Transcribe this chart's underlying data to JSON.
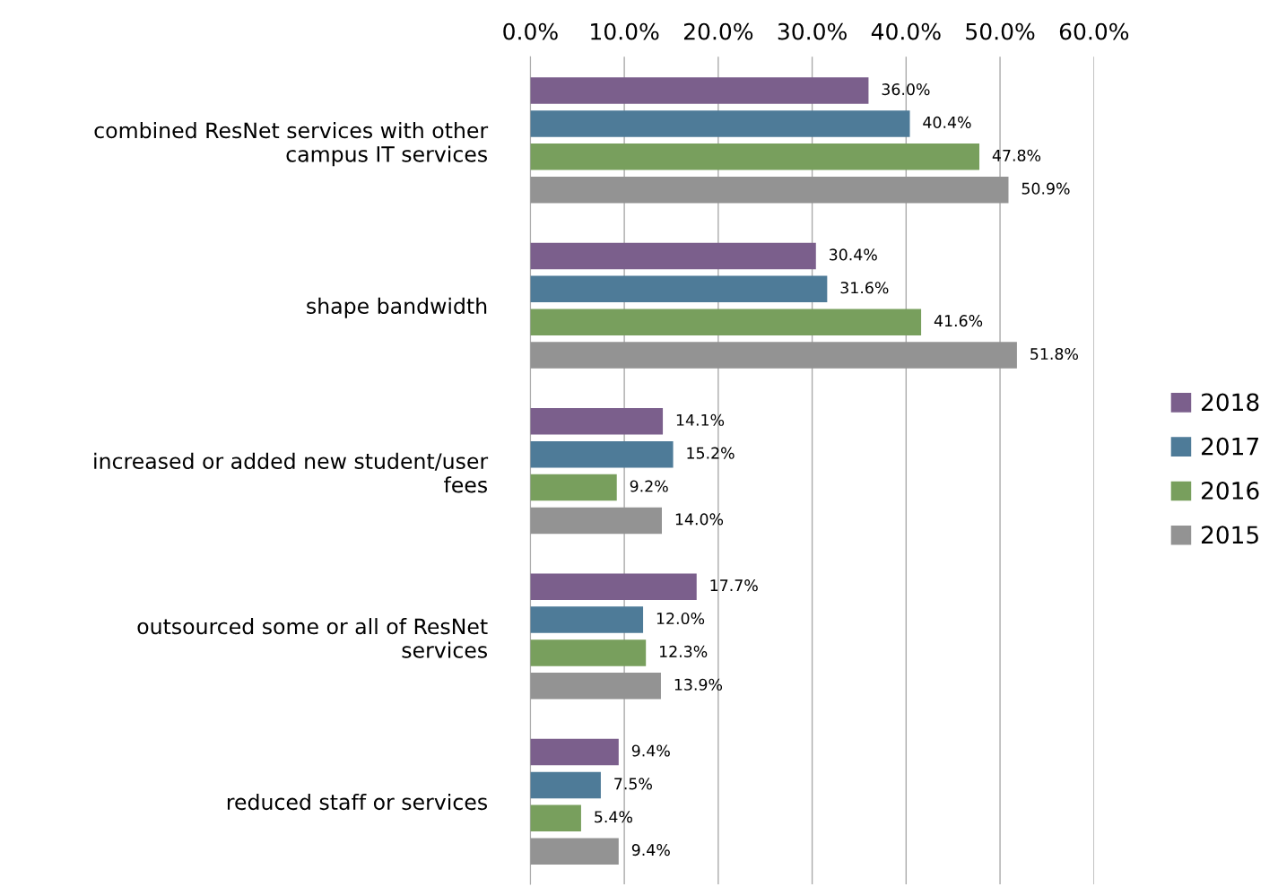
{
  "chart_data": {
    "type": "bar",
    "orientation": "horizontal",
    "categories": [
      "combined ResNet services with other\ncampus IT services",
      "shape bandwidth",
      "increased or added new student/user\nfees",
      "outsourced some or all of ResNet\nservices",
      "reduced staff or services"
    ],
    "series": [
      {
        "name": "2018",
        "color": "#7b5f8c",
        "values": [
          36.0,
          30.4,
          14.1,
          17.7,
          9.4
        ],
        "value_labels": [
          "36.0%",
          "30.4%",
          "14.1%",
          "17.7%",
          "9.4%"
        ]
      },
      {
        "name": "2017",
        "color": "#4e7b98",
        "values": [
          40.4,
          31.6,
          15.2,
          12.0,
          7.5
        ],
        "value_labels": [
          "40.4%",
          "31.6%",
          "15.2%",
          "12.0%",
          "7.5%"
        ]
      },
      {
        "name": "2016",
        "color": "#789f5d",
        "values": [
          47.8,
          41.6,
          9.2,
          12.3,
          5.4
        ],
        "value_labels": [
          "47.8%",
          "41.6%",
          "9.2%",
          "12.3%",
          "5.4%"
        ]
      },
      {
        "name": "2015",
        "color": "#939393",
        "values": [
          50.9,
          51.8,
          14.0,
          13.9,
          9.4
        ],
        "value_labels": [
          "50.9%",
          "51.8%",
          "14.0%",
          "13.9%",
          "9.4%"
        ]
      }
    ],
    "xlim": [
      0,
      60
    ],
    "xticks": [
      {
        "value": 0,
        "label": "0.0%"
      },
      {
        "value": 10,
        "label": "10.0%"
      },
      {
        "value": 20,
        "label": "20.0%"
      },
      {
        "value": 30,
        "label": "30.0%"
      },
      {
        "value": 40,
        "label": "40.0%"
      },
      {
        "value": 50,
        "label": "50.0%"
      },
      {
        "value": 60,
        "label": "60.0%"
      }
    ],
    "grid": "x",
    "legend": "right"
  }
}
